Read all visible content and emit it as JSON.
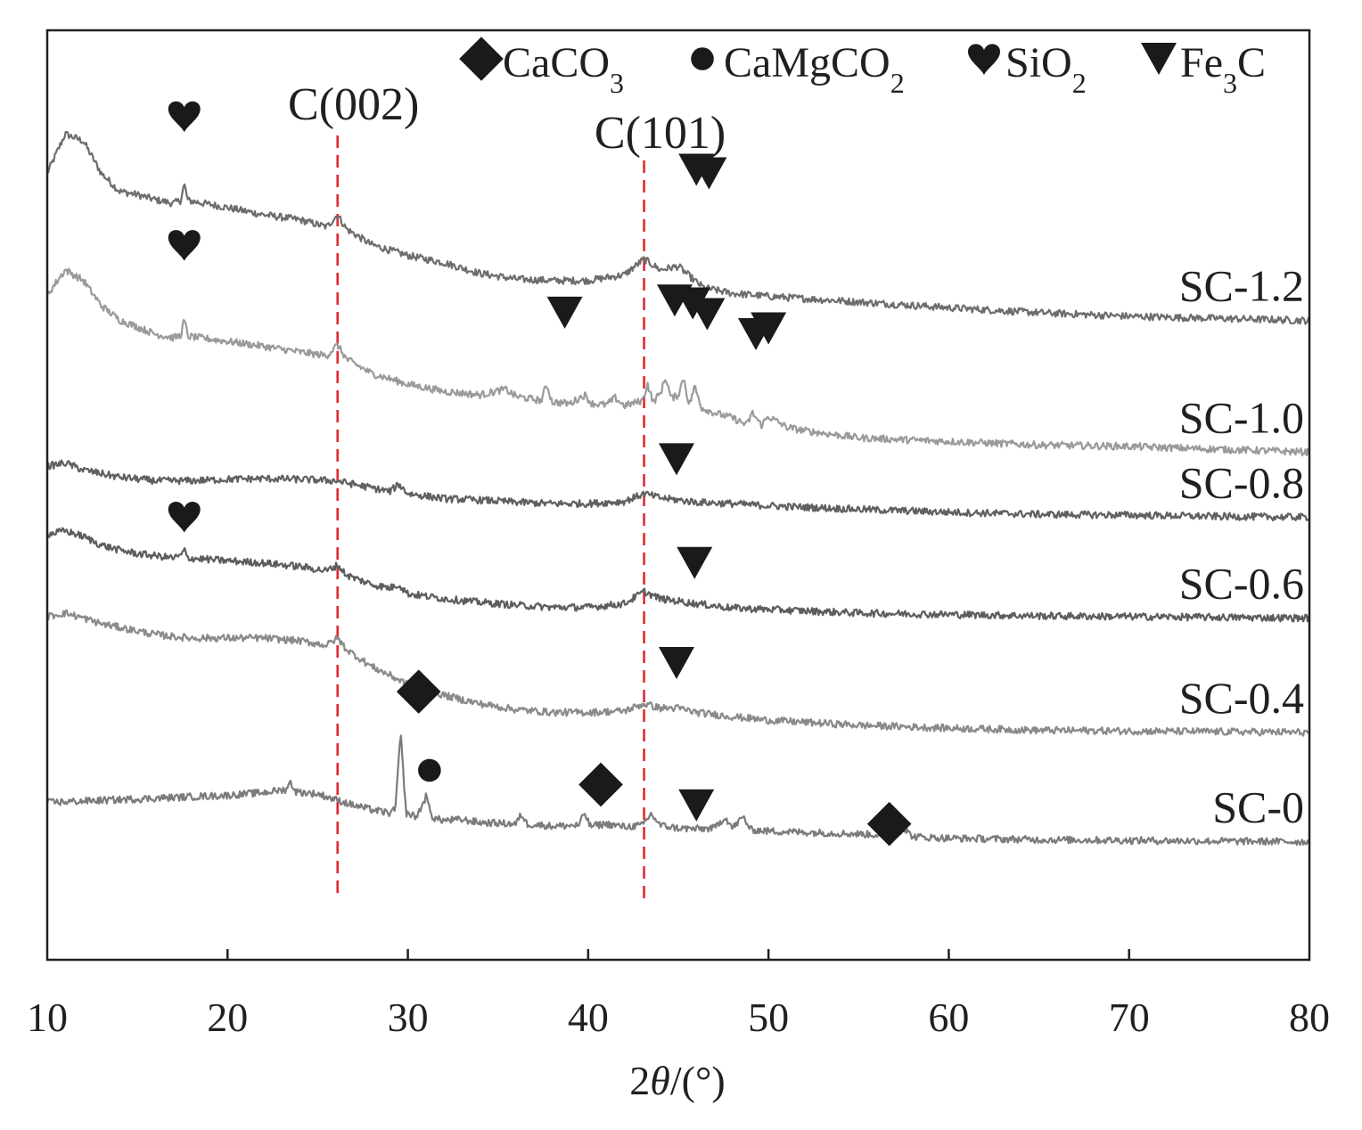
{
  "chart_data": {
    "type": "line",
    "title": "",
    "xlabel_prefix": "2",
    "xlabel_theta": "θ",
    "xlabel_suffix": "/(°)",
    "ylabel": "",
    "xlim": [
      10,
      80
    ],
    "xticks": [
      10,
      20,
      30,
      40,
      50,
      60,
      70,
      80
    ],
    "xtick_labels": [
      "10",
      "20",
      "30",
      "40",
      "50",
      "60",
      "70",
      "80"
    ],
    "legend": [
      {
        "symbol": "diamond",
        "parts": [
          {
            "t": "CaCO"
          },
          {
            "t": "3",
            "sub": true
          }
        ]
      },
      {
        "symbol": "circle",
        "parts": [
          {
            "t": "CaMgCO"
          },
          {
            "t": "2",
            "sub": true
          }
        ]
      },
      {
        "symbol": "heart",
        "parts": [
          {
            "t": "SiO"
          },
          {
            "t": "2",
            "sub": true
          }
        ]
      },
      {
        "symbol": "triangle",
        "parts": [
          {
            "t": "Fe"
          },
          {
            "t": "3",
            "sub": true
          },
          {
            "t": "C"
          }
        ]
      }
    ],
    "reference_lines": [
      {
        "x": 26.1,
        "label": "C(002)"
      },
      {
        "x": 43.1,
        "label": "C(101)"
      }
    ],
    "series": [
      {
        "name": "SC-1.2",
        "color": "#6d6d6d",
        "points": [
          [
            10,
            0.8
          ],
          [
            11,
            0.855
          ],
          [
            12,
            0.845
          ],
          [
            13,
            0.8
          ],
          [
            14,
            0.775
          ],
          [
            15,
            0.77
          ],
          [
            16,
            0.763
          ],
          [
            17,
            0.758
          ],
          [
            17.4,
            0.762
          ],
          [
            17.6,
            0.785
          ],
          [
            17.8,
            0.762
          ],
          [
            20,
            0.752
          ],
          [
            22,
            0.742
          ],
          [
            24,
            0.735
          ],
          [
            25.5,
            0.725
          ],
          [
            26.1,
            0.742
          ],
          [
            26.6,
            0.722
          ],
          [
            28,
            0.7
          ],
          [
            30,
            0.685
          ],
          [
            32,
            0.675
          ],
          [
            34,
            0.66
          ],
          [
            36,
            0.652
          ],
          [
            38,
            0.65
          ],
          [
            40,
            0.65
          ],
          [
            42,
            0.658
          ],
          [
            43.1,
            0.68
          ],
          [
            44,
            0.665
          ],
          [
            45,
            0.67
          ],
          [
            45.9,
            0.65
          ],
          [
            46.4,
            0.64
          ],
          [
            48,
            0.632
          ],
          [
            50,
            0.628
          ],
          [
            55,
            0.62
          ],
          [
            60,
            0.612
          ],
          [
            65,
            0.605
          ],
          [
            70,
            0.6
          ],
          [
            75,
            0.597
          ],
          [
            80,
            0.594
          ]
        ],
        "annotations": [
          {
            "symbol": "heart",
            "x": 17.6,
            "y": 0.88
          },
          {
            "symbol": "triangle",
            "x": 46.0,
            "y": 0.805
          },
          {
            "symbol": "triangle",
            "x": 46.7,
            "y": 0.8
          }
        ]
      },
      {
        "name": "SC-1.0",
        "color": "#9a9a9a",
        "points": [
          [
            10,
            0.63
          ],
          [
            11,
            0.665
          ],
          [
            12,
            0.65
          ],
          [
            13,
            0.615
          ],
          [
            14,
            0.595
          ],
          [
            15,
            0.585
          ],
          [
            16,
            0.575
          ],
          [
            17,
            0.57
          ],
          [
            17.4,
            0.573
          ],
          [
            17.6,
            0.595
          ],
          [
            17.8,
            0.572
          ],
          [
            20,
            0.565
          ],
          [
            22,
            0.558
          ],
          [
            24,
            0.55
          ],
          [
            25.5,
            0.545
          ],
          [
            26.1,
            0.56
          ],
          [
            26.6,
            0.54
          ],
          [
            28,
            0.52
          ],
          [
            30,
            0.505
          ],
          [
            32,
            0.495
          ],
          [
            34,
            0.49
          ],
          [
            35.4,
            0.498
          ],
          [
            36,
            0.488
          ],
          [
            37.4,
            0.482
          ],
          [
            37.7,
            0.505
          ],
          [
            38,
            0.48
          ],
          [
            39,
            0.478
          ],
          [
            39.8,
            0.49
          ],
          [
            40.2,
            0.478
          ],
          [
            41,
            0.476
          ],
          [
            41.5,
            0.486
          ],
          [
            42,
            0.475
          ],
          [
            43,
            0.482
          ],
          [
            43.3,
            0.505
          ],
          [
            43.6,
            0.48
          ],
          [
            44,
            0.492
          ],
          [
            44.3,
            0.515
          ],
          [
            44.6,
            0.485
          ],
          [
            45,
            0.49
          ],
          [
            45.3,
            0.515
          ],
          [
            45.6,
            0.475
          ],
          [
            45.9,
            0.502
          ],
          [
            46.3,
            0.472
          ],
          [
            47,
            0.465
          ],
          [
            48,
            0.458
          ],
          [
            48.8,
            0.448
          ],
          [
            49.1,
            0.465
          ],
          [
            49.6,
            0.448
          ],
          [
            50,
            0.46
          ],
          [
            51,
            0.445
          ],
          [
            52,
            0.44
          ],
          [
            55,
            0.43
          ],
          [
            60,
            0.425
          ],
          [
            65,
            0.42
          ],
          [
            70,
            0.418
          ],
          [
            75,
            0.414
          ],
          [
            80,
            0.41
          ]
        ],
        "annotations": [
          {
            "symbol": "heart",
            "x": 17.6,
            "y": 0.7
          },
          {
            "symbol": "triangle",
            "x": 38.7,
            "y": 0.605
          },
          {
            "symbol": "triangle",
            "x": 44.8,
            "y": 0.622
          },
          {
            "symbol": "triangle",
            "x": 45.8,
            "y": 0.618
          },
          {
            "symbol": "triangle",
            "x": 46.6,
            "y": 0.603
          },
          {
            "symbol": "triangle",
            "x": 49.3,
            "y": 0.575
          },
          {
            "symbol": "triangle",
            "x": 50.0,
            "y": 0.583
          }
        ]
      },
      {
        "name": "SC-0.8",
        "color": "#606060",
        "points": [
          [
            10,
            0.39
          ],
          [
            11,
            0.395
          ],
          [
            12,
            0.385
          ],
          [
            14,
            0.375
          ],
          [
            16,
            0.37
          ],
          [
            18,
            0.37
          ],
          [
            20,
            0.372
          ],
          [
            22,
            0.373
          ],
          [
            24,
            0.372
          ],
          [
            26,
            0.37
          ],
          [
            27,
            0.365
          ],
          [
            28,
            0.36
          ],
          [
            29,
            0.355
          ],
          [
            29.5,
            0.365
          ],
          [
            30,
            0.352
          ],
          [
            32,
            0.345
          ],
          [
            34,
            0.343
          ],
          [
            36,
            0.34
          ],
          [
            38,
            0.338
          ],
          [
            40,
            0.338
          ],
          [
            42,
            0.341
          ],
          [
            43.1,
            0.352
          ],
          [
            44,
            0.346
          ],
          [
            46,
            0.34
          ],
          [
            48,
            0.338
          ],
          [
            50,
            0.335
          ],
          [
            55,
            0.33
          ],
          [
            60,
            0.326
          ],
          [
            65,
            0.323
          ],
          [
            70,
            0.322
          ],
          [
            75,
            0.32
          ],
          [
            80,
            0.319
          ]
        ],
        "annotations": [
          {
            "symbol": "triangle",
            "x": 44.9,
            "y": 0.4
          }
        ]
      },
      {
        "name": "SC-0.6",
        "color": "#5d5d5d",
        "points": [
          [
            10,
            0.295
          ],
          [
            11,
            0.3
          ],
          [
            12,
            0.292
          ],
          [
            13,
            0.28
          ],
          [
            14,
            0.273
          ],
          [
            15,
            0.268
          ],
          [
            16,
            0.265
          ],
          [
            17,
            0.262
          ],
          [
            17.4,
            0.265
          ],
          [
            17.6,
            0.273
          ],
          [
            17.8,
            0.262
          ],
          [
            20,
            0.258
          ],
          [
            22,
            0.255
          ],
          [
            24,
            0.25
          ],
          [
            25.5,
            0.244
          ],
          [
            26.1,
            0.252
          ],
          [
            26.6,
            0.238
          ],
          [
            28,
            0.225
          ],
          [
            29,
            0.22
          ],
          [
            29.5,
            0.225
          ],
          [
            30,
            0.212
          ],
          [
            32,
            0.205
          ],
          [
            34,
            0.2
          ],
          [
            36,
            0.196
          ],
          [
            38,
            0.193
          ],
          [
            40,
            0.193
          ],
          [
            42,
            0.198
          ],
          [
            43.1,
            0.215
          ],
          [
            44,
            0.205
          ],
          [
            46,
            0.198
          ],
          [
            48,
            0.192
          ],
          [
            50,
            0.19
          ],
          [
            55,
            0.185
          ],
          [
            60,
            0.183
          ],
          [
            65,
            0.181
          ],
          [
            70,
            0.18
          ],
          [
            75,
            0.179
          ],
          [
            80,
            0.178
          ]
        ],
        "annotations": [
          {
            "symbol": "heart",
            "x": 17.6,
            "y": 0.32
          },
          {
            "symbol": "triangle",
            "x": 45.9,
            "y": 0.255
          }
        ]
      },
      {
        "name": "SC-0.4",
        "color": "#8a8a8a",
        "points": [
          [
            10,
            0.18
          ],
          [
            11,
            0.185
          ],
          [
            12,
            0.178
          ],
          [
            13,
            0.17
          ],
          [
            14,
            0.165
          ],
          [
            15,
            0.16
          ],
          [
            16,
            0.155
          ],
          [
            17,
            0.152
          ],
          [
            18,
            0.15
          ],
          [
            20,
            0.15
          ],
          [
            22,
            0.15
          ],
          [
            24,
            0.146
          ],
          [
            25.5,
            0.14
          ],
          [
            26.1,
            0.15
          ],
          [
            26.6,
            0.134
          ],
          [
            28,
            0.11
          ],
          [
            29,
            0.098
          ],
          [
            30,
            0.085
          ],
          [
            32,
            0.07
          ],
          [
            34,
            0.058
          ],
          [
            36,
            0.05
          ],
          [
            38,
            0.046
          ],
          [
            40,
            0.046
          ],
          [
            42,
            0.048
          ],
          [
            43.1,
            0.058
          ],
          [
            44,
            0.052
          ],
          [
            45,
            0.052
          ],
          [
            46,
            0.046
          ],
          [
            48,
            0.04
          ],
          [
            50,
            0.035
          ],
          [
            55,
            0.028
          ],
          [
            60,
            0.024
          ],
          [
            65,
            0.021
          ],
          [
            70,
            0.02
          ],
          [
            75,
            0.019
          ],
          [
            80,
            0.018
          ]
        ],
        "annotations": [
          {
            "symbol": "triangle",
            "x": 44.9,
            "y": 0.115
          },
          {
            "symbol": "diamond",
            "x": 30.6,
            "y": 0.075
          }
        ]
      },
      {
        "name": "SC-0",
        "color": "#7b7b7b",
        "points": [
          [
            10,
            -0.08
          ],
          [
            12,
            -0.078
          ],
          [
            14,
            -0.076
          ],
          [
            16,
            -0.074
          ],
          [
            18,
            -0.072
          ],
          [
            20,
            -0.07
          ],
          [
            22,
            -0.066
          ],
          [
            23.2,
            -0.062
          ],
          [
            23.5,
            -0.052
          ],
          [
            23.8,
            -0.065
          ],
          [
            25,
            -0.068
          ],
          [
            26,
            -0.076
          ],
          [
            27,
            -0.084
          ],
          [
            28,
            -0.09
          ],
          [
            29,
            -0.095
          ],
          [
            29.3,
            -0.09
          ],
          [
            29.6,
            0.017
          ],
          [
            29.9,
            -0.095
          ],
          [
            30.5,
            -0.1
          ],
          [
            31,
            -0.072
          ],
          [
            31.4,
            -0.102
          ],
          [
            32,
            -0.105
          ],
          [
            33,
            -0.104
          ],
          [
            34,
            -0.108
          ],
          [
            36,
            -0.11
          ],
          [
            36.3,
            -0.096
          ],
          [
            36.6,
            -0.11
          ],
          [
            38,
            -0.113
          ],
          [
            39.5,
            -0.112
          ],
          [
            39.8,
            -0.094
          ],
          [
            40.1,
            -0.113
          ],
          [
            41,
            -0.11
          ],
          [
            42,
            -0.114
          ],
          [
            43,
            -0.112
          ],
          [
            43.5,
            -0.096
          ],
          [
            44,
            -0.112
          ],
          [
            45,
            -0.116
          ],
          [
            46,
            -0.117
          ],
          [
            47,
            -0.116
          ],
          [
            47.6,
            -0.1
          ],
          [
            48,
            -0.116
          ],
          [
            48.6,
            -0.1
          ],
          [
            49,
            -0.118
          ],
          [
            50,
            -0.12
          ],
          [
            55,
            -0.124
          ],
          [
            57,
            -0.126
          ],
          [
            57.5,
            -0.116
          ],
          [
            58,
            -0.128
          ],
          [
            60,
            -0.13
          ],
          [
            65,
            -0.132
          ],
          [
            70,
            -0.133
          ],
          [
            75,
            -0.134
          ],
          [
            80,
            -0.135
          ]
        ],
        "annotations": [
          {
            "symbol": "circle",
            "x": 31.2,
            "y": -0.035
          },
          {
            "symbol": "diamond",
            "x": 40.7,
            "y": -0.055
          },
          {
            "symbol": "triangle",
            "x": 46.0,
            "y": -0.084
          },
          {
            "symbol": "diamond",
            "x": 56.7,
            "y": -0.11
          }
        ]
      }
    ]
  }
}
